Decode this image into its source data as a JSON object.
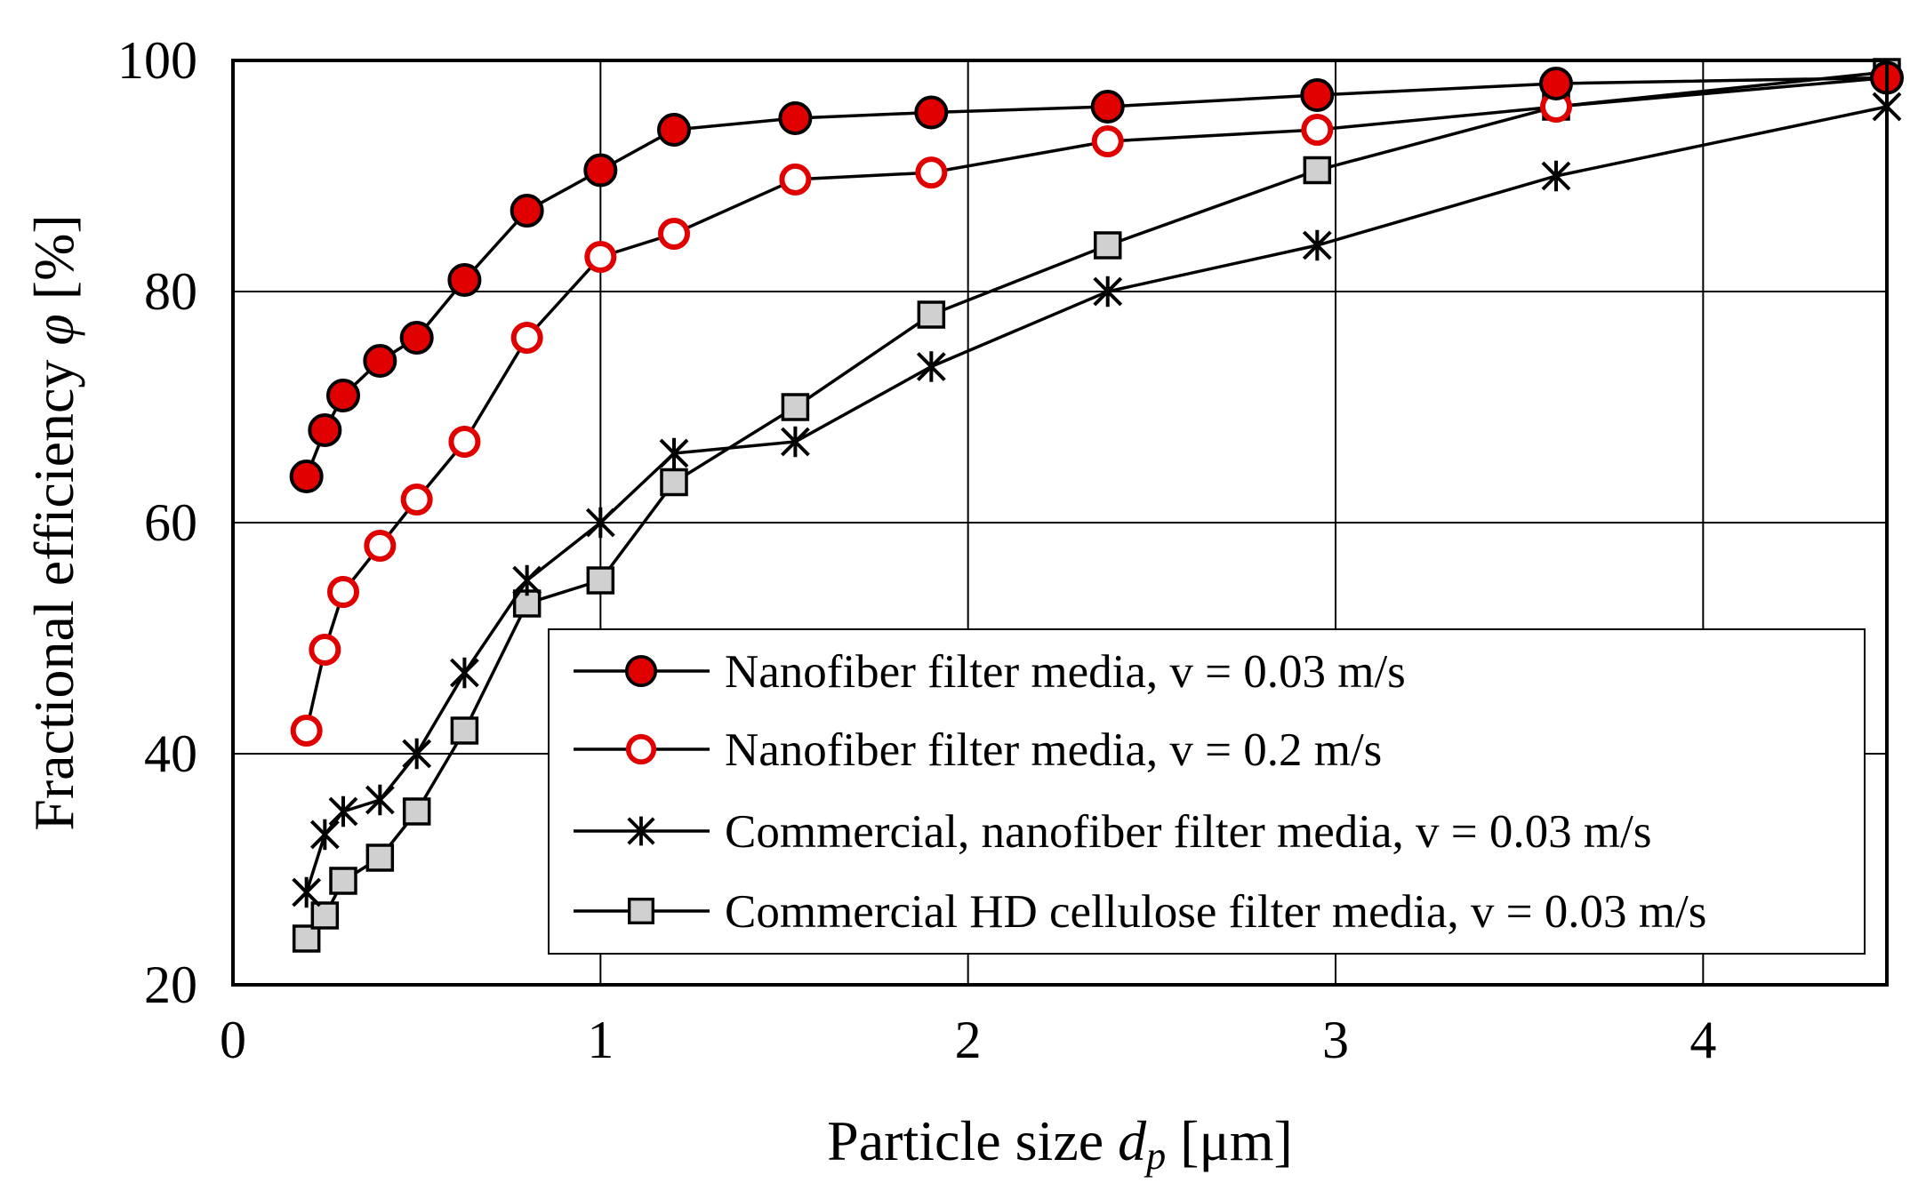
{
  "chart_data": {
    "type": "line",
    "title": "",
    "xlabel": {
      "prefix": "Particle size ",
      "var": "d",
      "sub": "p",
      "unit": " [μm]"
    },
    "ylabel": {
      "prefix": "Fractional efficiency ",
      "var": "φ",
      "unit": " [%]"
    },
    "xlim": [
      0,
      4.5
    ],
    "ylim": [
      20,
      100
    ],
    "xticks": [
      0,
      1,
      2,
      3,
      4
    ],
    "yticks": [
      20,
      40,
      60,
      80,
      100
    ],
    "grid": true,
    "legend_position": "bottom-right",
    "series": [
      {
        "name": "Nanofiber filter media, v = 0.03 m/s",
        "marker": "circle-filled",
        "color": "#e00000",
        "x": [
          0.2,
          0.25,
          0.3,
          0.4,
          0.5,
          0.63,
          0.8,
          1.0,
          1.2,
          1.53,
          1.9,
          2.38,
          2.95,
          3.6,
          4.5
        ],
        "y": [
          64,
          68,
          71,
          74,
          76,
          81,
          87,
          90.5,
          94,
          95,
          95.5,
          96,
          97,
          98,
          98.5
        ]
      },
      {
        "name": "Nanofiber filter media, v = 0.2 m/s",
        "marker": "circle-open",
        "color": "#e00000",
        "x": [
          0.2,
          0.25,
          0.3,
          0.4,
          0.5,
          0.63,
          0.8,
          1.0,
          1.2,
          1.53,
          1.9,
          2.38,
          2.95,
          3.6,
          4.5
        ],
        "y": [
          42,
          49,
          54,
          58,
          62,
          67,
          76,
          83,
          85,
          89.7,
          90.3,
          93,
          94,
          96,
          98.5
        ]
      },
      {
        "name": "Commercial, nanofiber filter media, v = 0.03 m/s",
        "marker": "asterisk",
        "color": "#000000",
        "x": [
          0.2,
          0.25,
          0.3,
          0.4,
          0.5,
          0.63,
          0.8,
          1.0,
          1.2,
          1.53,
          1.9,
          2.38,
          2.95,
          3.6,
          4.5
        ],
        "y": [
          28,
          33,
          35,
          36,
          40,
          47,
          55,
          60,
          66,
          67,
          73.5,
          80,
          84,
          90,
          96
        ]
      },
      {
        "name": "Commercial HD cellulose filter media, v = 0.03 m/s",
        "marker": "square",
        "color": "#d0d0d0",
        "x": [
          0.2,
          0.25,
          0.3,
          0.4,
          0.5,
          0.63,
          0.8,
          1.0,
          1.2,
          1.53,
          1.9,
          2.38,
          2.95,
          3.6,
          4.5
        ],
        "y": [
          24,
          26,
          29,
          31,
          35,
          42,
          53,
          55,
          63.5,
          70,
          78,
          84,
          90.5,
          96,
          99
        ]
      }
    ]
  }
}
